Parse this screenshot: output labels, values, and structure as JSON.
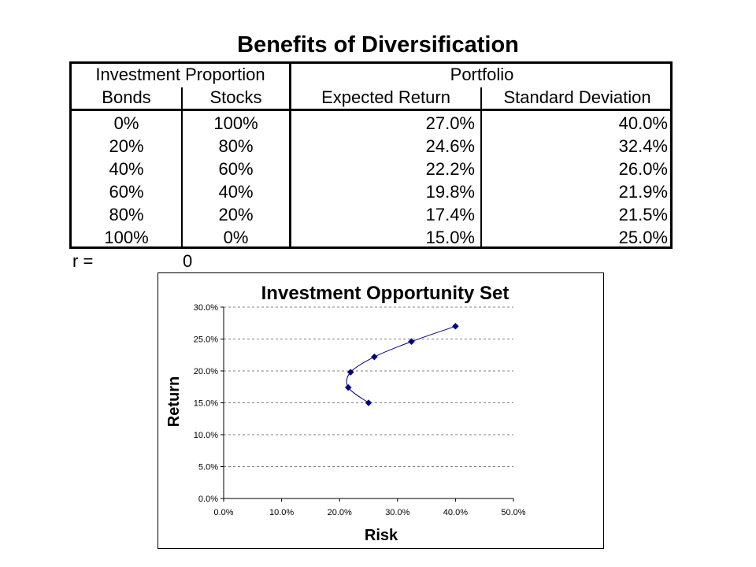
{
  "title": "Benefits of Diversification",
  "table": {
    "group_left": "Investment Proportion",
    "group_right": "Portfolio",
    "col_headers": [
      "Bonds",
      "Stocks",
      "Expected Return",
      "Standard Deviation"
    ],
    "rows": [
      [
        "0%",
        "100%",
        "27.0%",
        "40.0%"
      ],
      [
        "20%",
        "80%",
        "24.6%",
        "32.4%"
      ],
      [
        "40%",
        "60%",
        "22.2%",
        "26.0%"
      ],
      [
        "60%",
        "40%",
        "19.8%",
        "21.9%"
      ],
      [
        "80%",
        "20%",
        "17.4%",
        "21.5%"
      ],
      [
        "100%",
        "0%",
        "15.0%",
        "25.0%"
      ]
    ]
  },
  "correlation": {
    "label": "r =",
    "value": "0"
  },
  "chart_data": {
    "type": "scatter",
    "title": "Investment Opportunity Set",
    "xlabel": "Risk",
    "ylabel": "Return",
    "xlim": [
      0,
      0.5
    ],
    "ylim": [
      0,
      0.3
    ],
    "x_ticks": [
      0,
      0.1,
      0.2,
      0.3,
      0.4,
      0.5
    ],
    "x_tick_labels": [
      "0.0%",
      "10.0%",
      "20.0%",
      "30.0%",
      "40.0%",
      "50.0%"
    ],
    "y_ticks": [
      0,
      0.05,
      0.1,
      0.15,
      0.2,
      0.25,
      0.3
    ],
    "y_tick_labels": [
      "0.0%",
      "5.0%",
      "10.0%",
      "15.0%",
      "20.0%",
      "25.0%",
      "30.0%"
    ],
    "grid": "horizontal dashed",
    "series": [
      {
        "x": [
          0.4,
          0.324,
          0.26,
          0.219,
          0.215,
          0.25
        ],
        "y": [
          0.27,
          0.246,
          0.222,
          0.198,
          0.174,
          0.15
        ]
      }
    ],
    "marker": "diamond",
    "color": "#000080",
    "line_style": "smooth"
  }
}
